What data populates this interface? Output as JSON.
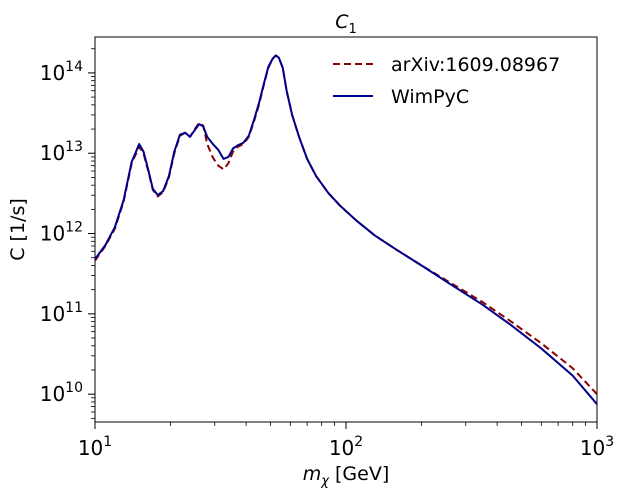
{
  "chart_data": {
    "type": "line",
    "title": "C_1",
    "title_base": "C",
    "title_sub": "1",
    "xlabel": "m_χ [GeV]",
    "xlabel_symbol": "m",
    "xlabel_sub": "χ",
    "xlabel_unit": " [GeV]",
    "ylabel": "C [1/s]",
    "xscale": "log",
    "yscale": "log",
    "xlim": [
      10,
      1000
    ],
    "ylim": [
      4500000000.0,
      280000000000000.0
    ],
    "xticks": [
      {
        "value": 10,
        "base": "10",
        "exp": "1"
      },
      {
        "value": 100,
        "base": "10",
        "exp": "2"
      },
      {
        "value": 1000,
        "base": "10",
        "exp": "3"
      }
    ],
    "yticks": [
      {
        "value": 10000000000.0,
        "base": "10",
        "exp": "10"
      },
      {
        "value": 100000000000.0,
        "base": "10",
        "exp": "11"
      },
      {
        "value": 1000000000000.0,
        "base": "10",
        "exp": "12"
      },
      {
        "value": 10000000000000.0,
        "base": "10",
        "exp": "13"
      },
      {
        "value": 100000000000000.0,
        "base": "10",
        "exp": "14"
      }
    ],
    "legend_position": "top-right",
    "series": [
      {
        "name": "arXiv:1609.08967",
        "color": "#8b0000",
        "style": "dashed",
        "points": [
          [
            10,
            460000000000.0
          ],
          [
            11,
            700000000000.0
          ],
          [
            12,
            1150000000000.0
          ],
          [
            13,
            2500000000000.0
          ],
          [
            14,
            7500000000000.0
          ],
          [
            15,
            12000000000000.0
          ],
          [
            15.6,
            10000000000000.0
          ],
          [
            16.3,
            6000000000000.0
          ],
          [
            17,
            3500000000000.0
          ],
          [
            17.8,
            2900000000000.0
          ],
          [
            18.7,
            3300000000000.0
          ],
          [
            19.7,
            5000000000000.0
          ],
          [
            20.7,
            10000000000000.0
          ],
          [
            21.8,
            16500000000000.0
          ],
          [
            22.9,
            18000000000000.0
          ],
          [
            23.9,
            16000000000000.0
          ],
          [
            25,
            20000000000000.0
          ],
          [
            26,
            24000000000000.0
          ],
          [
            27,
            22000000000000.0
          ],
          [
            28,
            13000000000000.0
          ],
          [
            29.5,
            8800000000000.0
          ],
          [
            31,
            7000000000000.0
          ],
          [
            32.5,
            6300000000000.0
          ],
          [
            34,
            7500000000000.0
          ],
          [
            35.5,
            10500000000000.0
          ],
          [
            37,
            12000000000000.0
          ],
          [
            39,
            13000000000000.0
          ],
          [
            41,
            16000000000000.0
          ],
          [
            43,
            25000000000000.0
          ],
          [
            45,
            40000000000000.0
          ],
          [
            47,
            70000000000000.0
          ],
          [
            49,
            115000000000000.0
          ],
          [
            51,
            150000000000000.0
          ],
          [
            52.5,
            165000000000000.0
          ],
          [
            54,
            155000000000000.0
          ],
          [
            56,
            115000000000000.0
          ],
          [
            58,
            60000000000000.0
          ],
          [
            61,
            30000000000000.0
          ],
          [
            65,
            16000000000000.0
          ],
          [
            70,
            8500000000000.0
          ],
          [
            76,
            5200000000000.0
          ],
          [
            85,
            3200000000000.0
          ],
          [
            95,
            2200000000000.0
          ],
          [
            110,
            1450000000000.0
          ],
          [
            130,
            950000000000.0
          ],
          [
            160,
            620000000000.0
          ],
          [
            200,
            400000000000.0
          ],
          [
            260,
            245000000000.0
          ],
          [
            350,
            140000000000.0
          ],
          [
            450,
            82000000000.0
          ],
          [
            600,
            43000000000.0
          ],
          [
            800,
            21000000000.0
          ],
          [
            1000,
            10000000000.0
          ]
        ]
      },
      {
        "name": "WimPyC",
        "color": "#00008b",
        "style": "solid",
        "points": [
          [
            10,
            480000000000.0
          ],
          [
            11,
            720000000000.0
          ],
          [
            12,
            1200000000000.0
          ],
          [
            13,
            2600000000000.0
          ],
          [
            14,
            7800000000000.0
          ],
          [
            15,
            13000000000000.0
          ],
          [
            15.6,
            10500000000000.0
          ],
          [
            16.3,
            6200000000000.0
          ],
          [
            17,
            3600000000000.0
          ],
          [
            17.8,
            3000000000000.0
          ],
          [
            18.7,
            3400000000000.0
          ],
          [
            19.7,
            5200000000000.0
          ],
          [
            20.7,
            10500000000000.0
          ],
          [
            21.8,
            17000000000000.0
          ],
          [
            22.9,
            18000000000000.0
          ],
          [
            23.9,
            16000000000000.0
          ],
          [
            25,
            19500000000000.0
          ],
          [
            26,
            23000000000000.0
          ],
          [
            27,
            21500000000000.0
          ],
          [
            28,
            16000000000000.0
          ],
          [
            29.5,
            13000000000000.0
          ],
          [
            31,
            11000000000000.0
          ],
          [
            32.5,
            8500000000000.0
          ],
          [
            34,
            9000000000000.0
          ],
          [
            35.5,
            11500000000000.0
          ],
          [
            37,
            12500000000000.0
          ],
          [
            39,
            13500000000000.0
          ],
          [
            41,
            16500000000000.0
          ],
          [
            43,
            26000000000000.0
          ],
          [
            45,
            42000000000000.0
          ],
          [
            47,
            72000000000000.0
          ],
          [
            49,
            118000000000000.0
          ],
          [
            51,
            150000000000000.0
          ],
          [
            52.5,
            165000000000000.0
          ],
          [
            54,
            155000000000000.0
          ],
          [
            56,
            115000000000000.0
          ],
          [
            58,
            60000000000000.0
          ],
          [
            61,
            30000000000000.0
          ],
          [
            65,
            16000000000000.0
          ],
          [
            70,
            8500000000000.0
          ],
          [
            76,
            5200000000000.0
          ],
          [
            85,
            3200000000000.0
          ],
          [
            95,
            2200000000000.0
          ],
          [
            110,
            1450000000000.0
          ],
          [
            130,
            950000000000.0
          ],
          [
            160,
            620000000000.0
          ],
          [
            200,
            400000000000.0
          ],
          [
            260,
            235000000000.0
          ],
          [
            350,
            130000000000.0
          ],
          [
            450,
            74000000000.0
          ],
          [
            600,
            37000000000.0
          ],
          [
            800,
            17000000000.0
          ],
          [
            1000,
            7500000000.0
          ]
        ]
      }
    ]
  }
}
